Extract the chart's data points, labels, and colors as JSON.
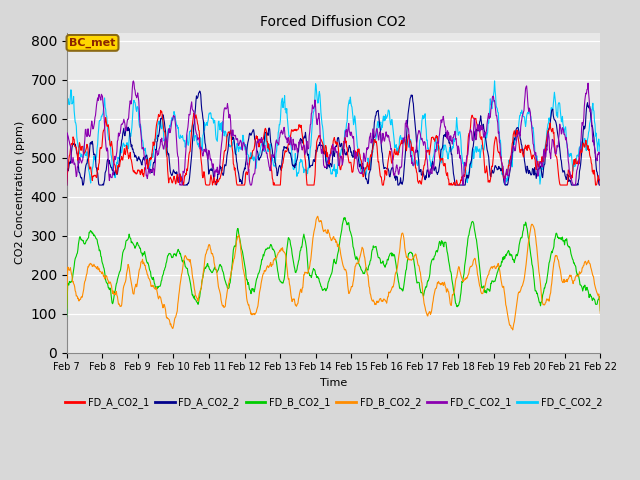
{
  "title": "Forced Diffusion CO2",
  "xlabel": "Time",
  "ylabel": "CO2 Concentration (ppm)",
  "ylim": [
    0,
    820
  ],
  "yticks": [
    0,
    100,
    200,
    300,
    400,
    500,
    600,
    700,
    800
  ],
  "annotation_text": "BC_met",
  "annotation_color": "#8B2500",
  "annotation_bg": "#FFD700",
  "annotation_border": "#8B6914",
  "bg_color": "#D8D8D8",
  "plot_bg_color": "#E8E8E8",
  "legend_entries": [
    "FD_A_CO2_1",
    "FD_A_CO2_2",
    "FD_B_CO2_1",
    "FD_B_CO2_2",
    "FD_C_CO2_1",
    "FD_C_CO2_2"
  ],
  "legend_colors": [
    "#FF0000",
    "#00008B",
    "#00CC00",
    "#FF8C00",
    "#8B00B0",
    "#00CCFF"
  ],
  "series_colors": {
    "FD_A_CO2_1": "#FF0000",
    "FD_A_CO2_2": "#00008B",
    "FD_B_CO2_1": "#00CC00",
    "FD_B_CO2_2": "#FF8C00",
    "FD_C_CO2_1": "#8B00B0",
    "FD_C_CO2_2": "#00CCFF"
  },
  "n_points": 1000,
  "x_start": 0,
  "x_end": 15,
  "xtick_labels": [
    "Feb 7",
    "Feb 8",
    "Feb 9",
    "Feb 10",
    "Feb 11",
    "Feb 12",
    "Feb 13",
    "Feb 14",
    "Feb 15",
    "Feb 16",
    "Feb 17",
    "Feb 18",
    "Feb 19",
    "Feb 20",
    "Feb 21",
    "Feb 22"
  ],
  "xtick_positions": [
    0,
    1,
    2,
    3,
    4,
    5,
    6,
    7,
    8,
    9,
    10,
    11,
    12,
    13,
    14,
    15
  ]
}
